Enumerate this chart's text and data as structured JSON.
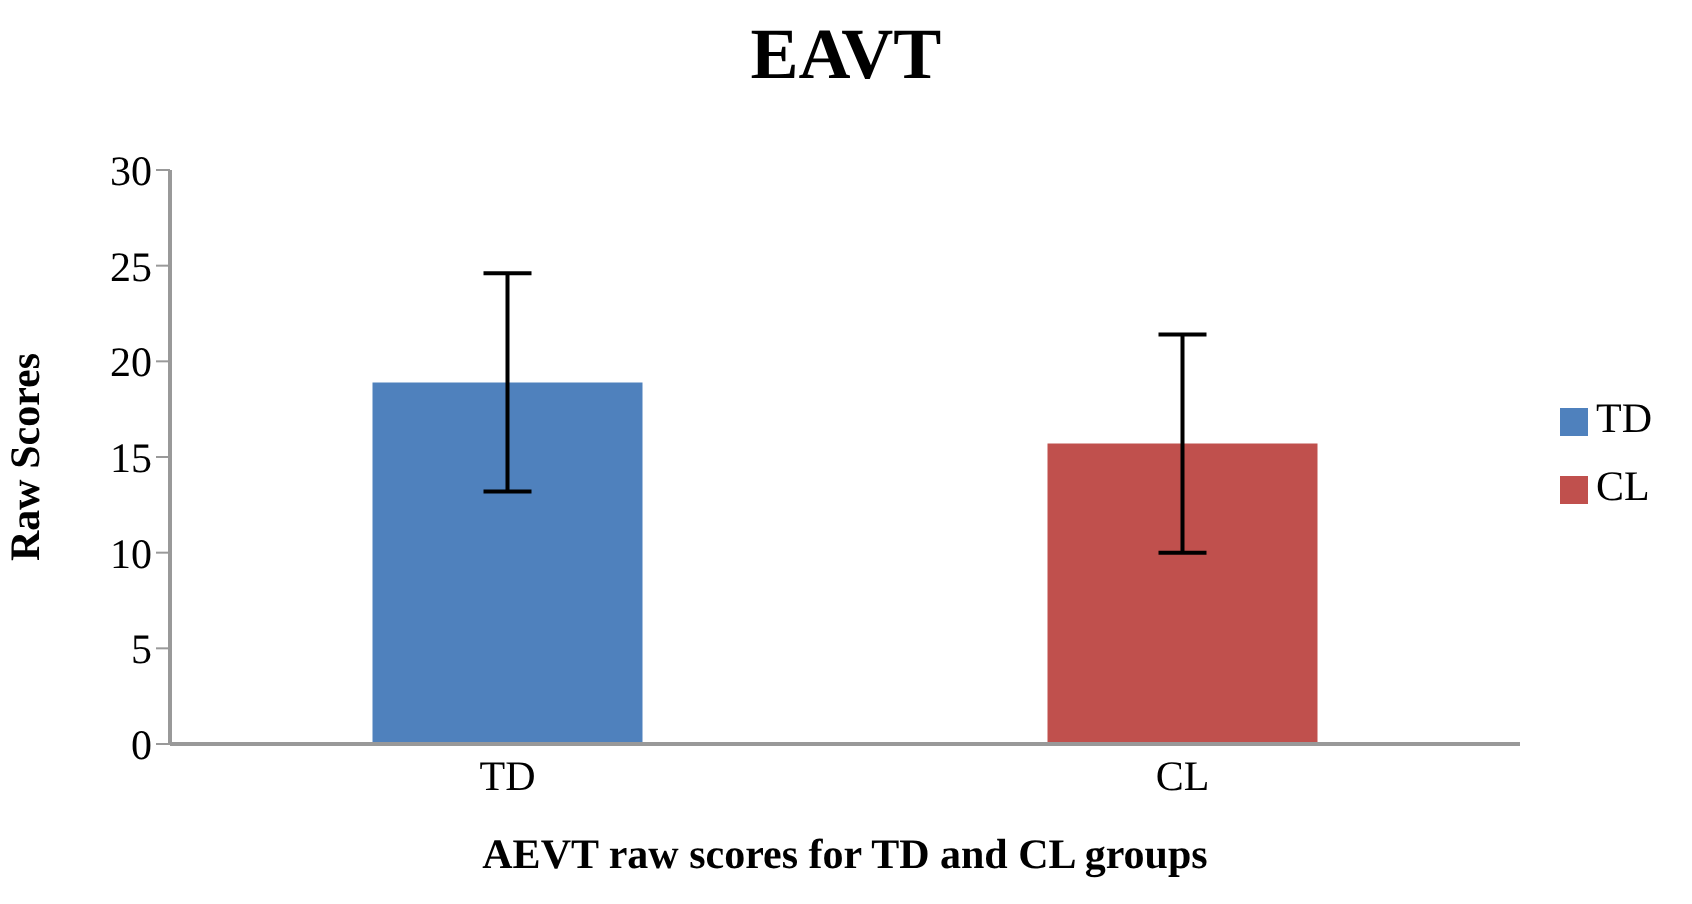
{
  "chart_data": {
    "type": "bar",
    "title": "EAVT",
    "xlabel": "AEVT raw scores for TD and CL groups",
    "ylabel": "Raw Scores",
    "categories": [
      "TD",
      "CL"
    ],
    "series": [
      {
        "name": "TD",
        "color": "#4f81bd",
        "values": [
          18.9,
          null
        ],
        "errors": [
          5.7,
          null
        ]
      },
      {
        "name": "CL",
        "color": "#c0504d",
        "values": [
          null,
          15.7
        ],
        "errors": [
          null,
          5.7
        ]
      }
    ],
    "stacked": true,
    "ylim": [
      0,
      30
    ],
    "yticks": [
      0,
      5,
      10,
      15,
      20,
      25,
      30
    ],
    "legend": "right"
  }
}
